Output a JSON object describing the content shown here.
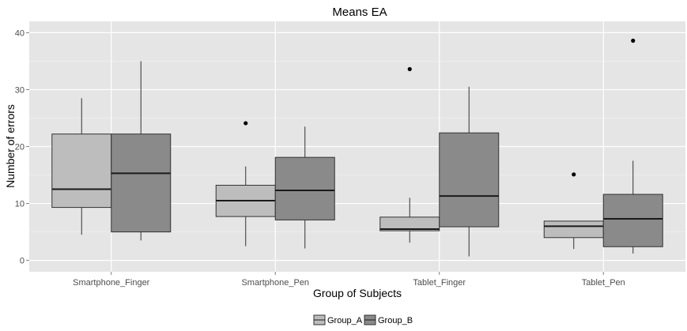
{
  "chart_data": {
    "type": "boxplot",
    "title": "Means EA",
    "xlabel": "Group of Subjects",
    "ylabel": "Number of errors",
    "ylim": [
      -2,
      42
    ],
    "yticks": [
      0,
      10,
      20,
      30,
      40
    ],
    "categories": [
      "Smartphone_Finger",
      "Smartphone_Pen",
      "Tablet_Finger",
      "Tablet_Pen"
    ],
    "grid": true,
    "legend_position": "bottom",
    "series": [
      {
        "name": "Group_A",
        "color": "#bdbdbd",
        "boxes": [
          {
            "whisker_low": 4.5,
            "q1": 9.3,
            "median": 12.5,
            "q3": 22.2,
            "whisker_high": 28.5,
            "outliers": []
          },
          {
            "whisker_low": 2.5,
            "q1": 7.7,
            "median": 10.5,
            "q3": 13.2,
            "whisker_high": 16.5,
            "outliers": [
              24.1
            ]
          },
          {
            "whisker_low": 3.1,
            "q1": 5.2,
            "median": 5.5,
            "q3": 7.6,
            "whisker_high": 11.0,
            "outliers": [
              33.6
            ]
          },
          {
            "whisker_low": 2.0,
            "q1": 4.0,
            "median": 6.0,
            "q3": 6.9,
            "whisker_high": 6.9,
            "outliers": [
              15.1
            ]
          }
        ]
      },
      {
        "name": "Group_B",
        "color": "#8a8a8a",
        "boxes": [
          {
            "whisker_low": 3.5,
            "q1": 5.0,
            "median": 15.3,
            "q3": 22.2,
            "whisker_high": 35.0,
            "outliers": []
          },
          {
            "whisker_low": 2.1,
            "q1": 7.1,
            "median": 12.3,
            "q3": 18.1,
            "whisker_high": 23.5,
            "outliers": []
          },
          {
            "whisker_low": 0.7,
            "q1": 5.9,
            "median": 11.3,
            "q3": 22.4,
            "whisker_high": 30.5,
            "outliers": []
          },
          {
            "whisker_low": 1.2,
            "q1": 2.4,
            "median": 7.3,
            "q3": 11.6,
            "whisker_high": 17.5,
            "outliers": [
              38.6
            ]
          }
        ]
      }
    ]
  }
}
